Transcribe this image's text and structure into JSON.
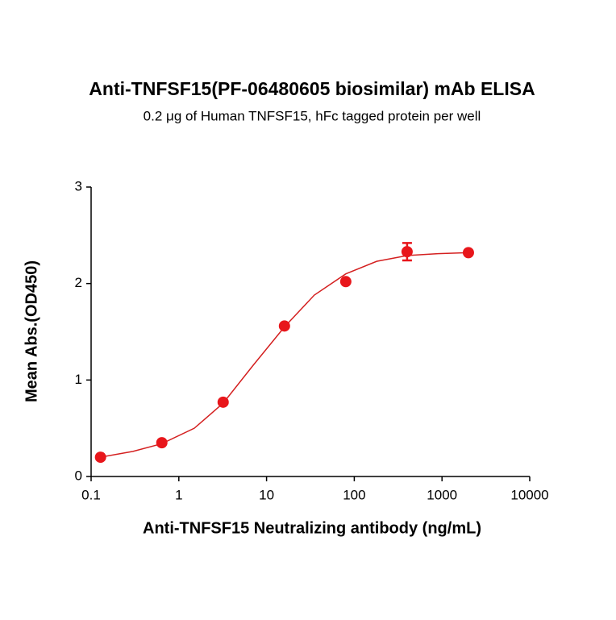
{
  "chart_data": {
    "type": "scatter",
    "title": "Anti-TNFSF15(PF-06480605 biosimilar) mAb ELISA",
    "subtitle": "0.2 μg of Human TNFSF15, hFc tagged protein per well",
    "xlabel": "Anti-TNFSF15 Neutralizing antibody (ng/mL)",
    "ylabel": "Mean Abs.(OD450)",
    "xscale": "log",
    "xlim": [
      0.1,
      10000
    ],
    "xticks": [
      0.1,
      1,
      10,
      100,
      1000,
      10000
    ],
    "ylim": [
      0,
      3
    ],
    "yticks": [
      0,
      1,
      2,
      3
    ],
    "points": {
      "color": "#e8161b",
      "x": [
        0.128,
        0.64,
        3.2,
        16,
        80,
        400,
        2000
      ],
      "values": [
        0.2,
        0.35,
        0.77,
        1.56,
        2.02,
        2.33,
        2.32
      ],
      "errors": [
        null,
        null,
        null,
        null,
        null,
        0.09,
        null
      ]
    },
    "fit": {
      "color": "#d42020",
      "x": [
        0.128,
        0.3,
        0.64,
        1.5,
        3.2,
        7,
        16,
        35,
        80,
        180,
        400,
        900,
        2000
      ],
      "values": [
        0.2,
        0.26,
        0.34,
        0.5,
        0.76,
        1.15,
        1.55,
        1.88,
        2.1,
        2.23,
        2.29,
        2.31,
        2.32
      ]
    }
  }
}
